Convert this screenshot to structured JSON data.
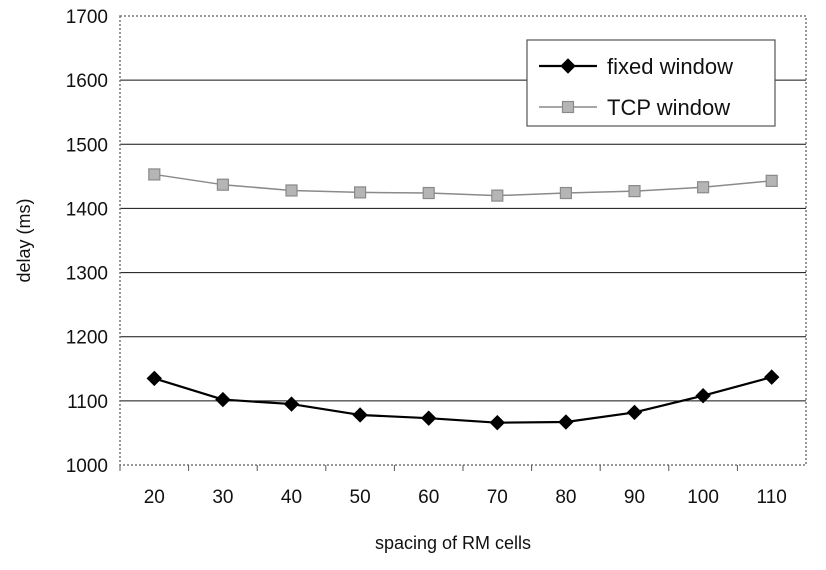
{
  "chart_data": {
    "type": "line",
    "title": "",
    "xlabel": "spacing of RM cells",
    "ylabel": "delay (ms)",
    "categories": [
      "20",
      "30",
      "40",
      "50",
      "60",
      "70",
      "80",
      "90",
      "100",
      "110"
    ],
    "ylim": [
      1000,
      1700
    ],
    "yticks": [
      "1000",
      "1100",
      "1200",
      "1300",
      "1400",
      "1500",
      "1600",
      "1700"
    ],
    "grid": true,
    "legend_position": "top-right",
    "series": [
      {
        "name": "fixed window",
        "marker": "diamond",
        "color": "#000000",
        "values": [
          1135,
          1102,
          1095,
          1078,
          1073,
          1066,
          1067,
          1082,
          1108,
          1137
        ]
      },
      {
        "name": "TCP window",
        "marker": "square",
        "color": "#8a8a8a",
        "values": [
          1453,
          1437,
          1428,
          1425,
          1424,
          1420,
          1424,
          1427,
          1433,
          1443
        ]
      }
    ]
  }
}
